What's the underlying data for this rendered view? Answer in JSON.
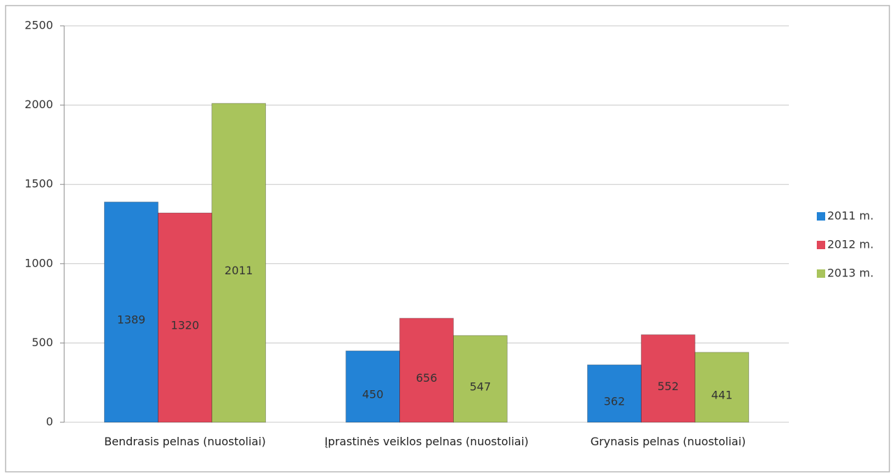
{
  "chart_data": {
    "type": "bar",
    "categories": [
      "Bendrasis pelnas (nuostoliai)",
      "Įprastinės veiklos pelnas (nuostoliai)",
      "Grynasis pelnas (nuostoliai)"
    ],
    "series": [
      {
        "name": "2011 m.",
        "color": "#2383d6",
        "values": [
          1389,
          450,
          362
        ]
      },
      {
        "name": "2012 m.",
        "color": "#e2475a",
        "values": [
          1320,
          656,
          552
        ]
      },
      {
        "name": "2013 m.",
        "color": "#a9c45c",
        "values": [
          2011,
          547,
          441
        ]
      }
    ],
    "ylim": [
      0,
      2500
    ],
    "yticks": [
      0,
      500,
      1000,
      1500,
      2000,
      2500
    ],
    "grid": true,
    "legend": "right"
  }
}
